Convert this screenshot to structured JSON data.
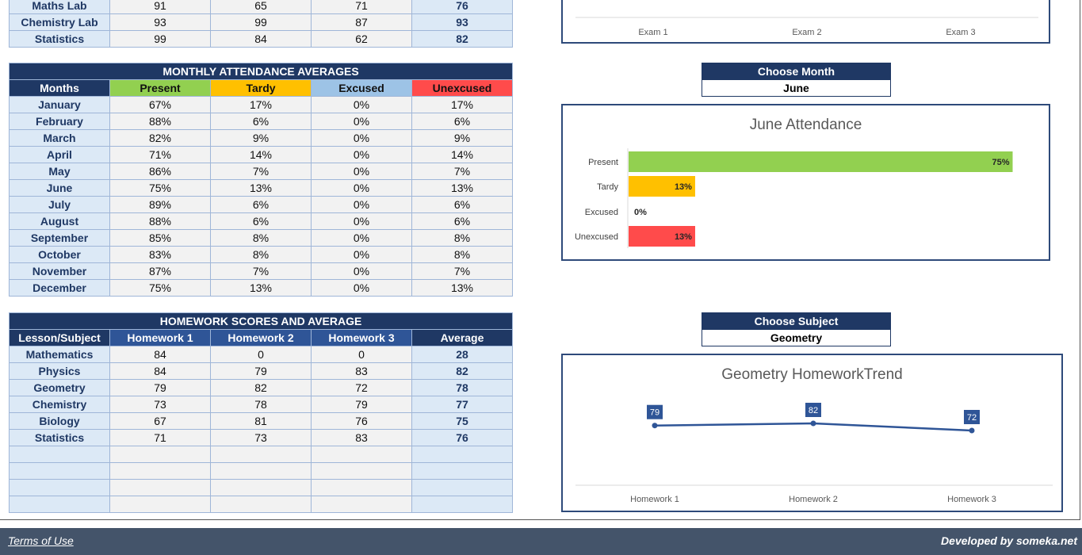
{
  "exam_tail_rows": [
    {
      "subject": "Maths Lab",
      "e1": "91",
      "e2": "65",
      "e3": "71",
      "avg": "76"
    },
    {
      "subject": "Chemistry Lab",
      "e1": "93",
      "e2": "99",
      "e3": "87",
      "avg": "93"
    },
    {
      "subject": "Statistics",
      "e1": "99",
      "e2": "84",
      "e3": "62",
      "avg": "82"
    }
  ],
  "exam_chart": {
    "x_labels": [
      "Exam 1",
      "Exam 2",
      "Exam 3"
    ]
  },
  "attendance": {
    "title": "MONTHLY ATTENDANCE AVERAGES",
    "headers": [
      "Months",
      "Present",
      "Tardy",
      "Excused",
      "Unexcused"
    ],
    "rows": [
      {
        "month": "January",
        "present": "67%",
        "tardy": "17%",
        "excused": "0%",
        "unexcused": "17%"
      },
      {
        "month": "February",
        "present": "88%",
        "tardy": "6%",
        "excused": "0%",
        "unexcused": "6%"
      },
      {
        "month": "March",
        "present": "82%",
        "tardy": "9%",
        "excused": "0%",
        "unexcused": "9%"
      },
      {
        "month": "April",
        "present": "71%",
        "tardy": "14%",
        "excused": "0%",
        "unexcused": "14%"
      },
      {
        "month": "May",
        "present": "86%",
        "tardy": "7%",
        "excused": "0%",
        "unexcused": "7%"
      },
      {
        "month": "June",
        "present": "75%",
        "tardy": "13%",
        "excused": "0%",
        "unexcused": "13%"
      },
      {
        "month": "July",
        "present": "89%",
        "tardy": "6%",
        "excused": "0%",
        "unexcused": "6%"
      },
      {
        "month": "August",
        "present": "88%",
        "tardy": "6%",
        "excused": "0%",
        "unexcused": "6%"
      },
      {
        "month": "September",
        "present": "85%",
        "tardy": "8%",
        "excused": "0%",
        "unexcused": "8%"
      },
      {
        "month": "October",
        "present": "83%",
        "tardy": "8%",
        "excused": "0%",
        "unexcused": "8%"
      },
      {
        "month": "November",
        "present": "87%",
        "tardy": "7%",
        "excused": "0%",
        "unexcused": "7%"
      },
      {
        "month": "December",
        "present": "75%",
        "tardy": "13%",
        "excused": "0%",
        "unexcused": "13%"
      }
    ]
  },
  "choose_month": {
    "label": "Choose Month",
    "value": "June"
  },
  "homework": {
    "title": "HOMEWORK SCORES AND AVERAGE",
    "headers": [
      "Lesson/Subject",
      "Homework 1",
      "Homework 2",
      "Homework 3",
      "Average"
    ],
    "rows": [
      {
        "subject": "Mathematics",
        "h1": "84",
        "h2": "0",
        "h3": "0",
        "avg": "28"
      },
      {
        "subject": "Physics",
        "h1": "84",
        "h2": "79",
        "h3": "83",
        "avg": "82"
      },
      {
        "subject": "Geometry",
        "h1": "79",
        "h2": "82",
        "h3": "72",
        "avg": "78"
      },
      {
        "subject": "Chemistry",
        "h1": "73",
        "h2": "78",
        "h3": "79",
        "avg": "77"
      },
      {
        "subject": "Biology",
        "h1": "67",
        "h2": "81",
        "h3": "76",
        "avg": "75"
      },
      {
        "subject": "Statistics",
        "h1": "71",
        "h2": "73",
        "h3": "83",
        "avg": "76"
      }
    ],
    "empty_rows": 4
  },
  "choose_subject": {
    "label": "Choose Subject",
    "value": "Geometry"
  },
  "chart_data": [
    {
      "type": "bar",
      "orientation": "horizontal",
      "title": "June Attendance",
      "categories": [
        "Present",
        "Tardy",
        "Excused",
        "Unexcused"
      ],
      "values": [
        75,
        13,
        0,
        13
      ],
      "value_labels": [
        "75%",
        "13%",
        "0%",
        "13%"
      ],
      "colors": [
        "#92d050",
        "#ffc000",
        "#9dc3e6",
        "#ff4b4b"
      ],
      "xlim": [
        0,
        100
      ],
      "grid": false
    },
    {
      "type": "line",
      "title": "Geometry HomeworkTrend",
      "x": [
        "Homework 1",
        "Homework 2",
        "Homework 3"
      ],
      "values": [
        79,
        82,
        72
      ],
      "color": "#2f5597",
      "grid": false
    }
  ],
  "footer": {
    "terms": "Terms of Use",
    "developer": "Developed by someka.net"
  }
}
